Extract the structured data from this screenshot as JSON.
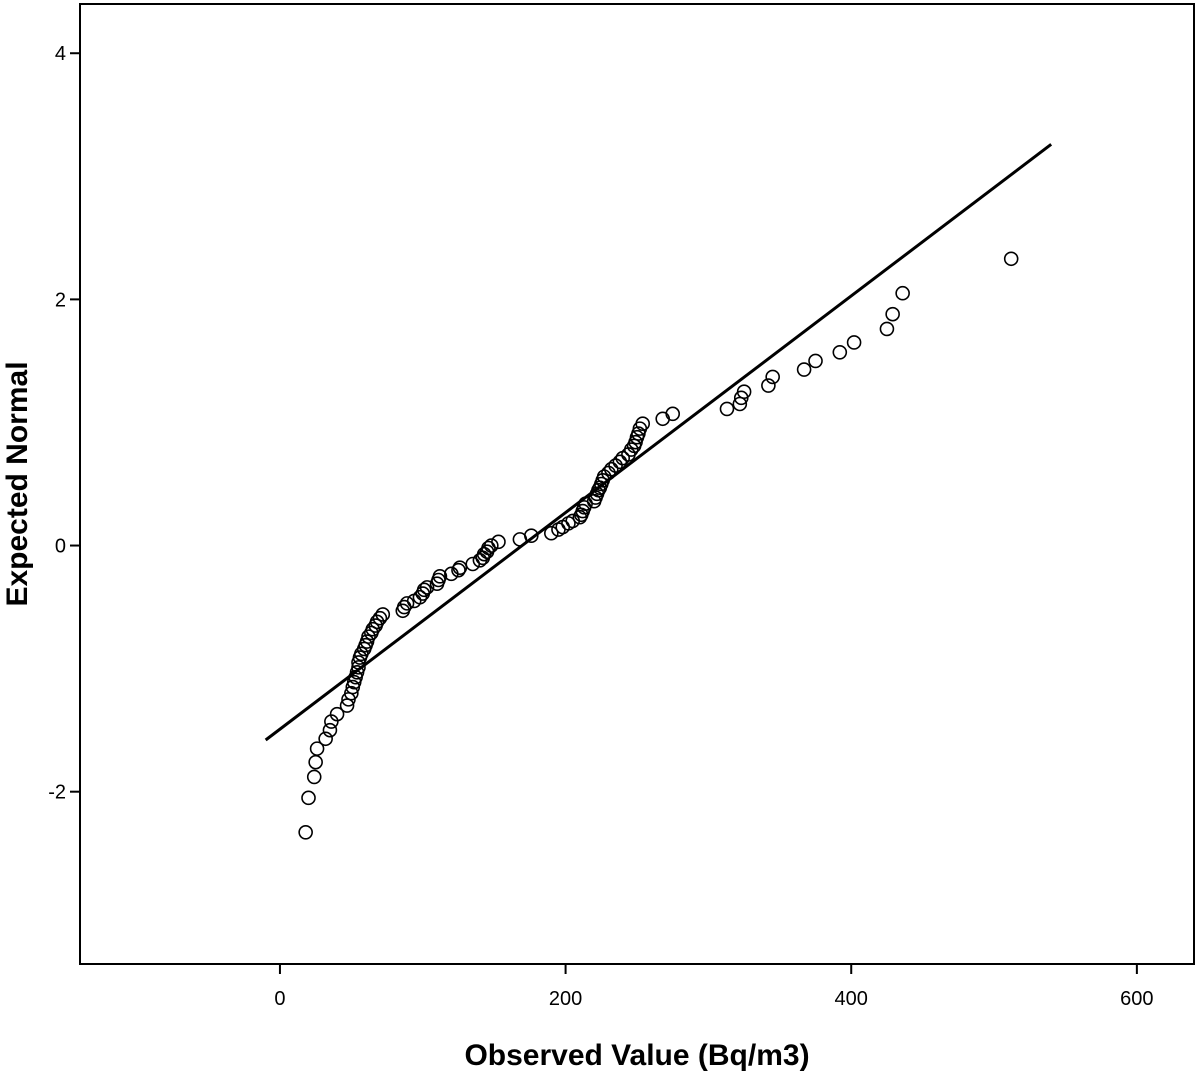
{
  "chart_data": {
    "type": "scatter",
    "title": "",
    "xlabel": "Observed Value (Bq/m3)",
    "ylabel": "Expected Normal",
    "xlim": [
      -140,
      640
    ],
    "ylim": [
      -3.4,
      4.4
    ],
    "x_ticks": [
      0,
      200,
      400,
      600
    ],
    "x_tick_labels": [
      "0",
      "200",
      "400",
      "600"
    ],
    "y_ticks": [
      -2,
      0,
      2,
      4
    ],
    "y_tick_labels": [
      "-2",
      "0",
      "2",
      "4"
    ],
    "grid": false,
    "legend": "none",
    "marker": "open-circle",
    "colors": {
      "points": "#000000",
      "line": "#000000",
      "frame": "#000000",
      "background": "#ffffff"
    },
    "reference_line": {
      "x": [
        -10,
        540
      ],
      "y": [
        -1.58,
        3.26
      ]
    },
    "points": [
      {
        "x": 18,
        "y": -2.33
      },
      {
        "x": 20,
        "y": -2.05
      },
      {
        "x": 24,
        "y": -1.88
      },
      {
        "x": 25,
        "y": -1.76
      },
      {
        "x": 26,
        "y": -1.65
      },
      {
        "x": 32,
        "y": -1.57
      },
      {
        "x": 35,
        "y": -1.5
      },
      {
        "x": 36,
        "y": -1.43
      },
      {
        "x": 40,
        "y": -1.37
      },
      {
        "x": 47,
        "y": -1.3
      },
      {
        "x": 48,
        "y": -1.25
      },
      {
        "x": 50,
        "y": -1.2
      },
      {
        "x": 51,
        "y": -1.15
      },
      {
        "x": 52,
        "y": -1.11
      },
      {
        "x": 53,
        "y": -1.07
      },
      {
        "x": 54,
        "y": -1.03
      },
      {
        "x": 55,
        "y": -0.99
      },
      {
        "x": 55,
        "y": -0.95
      },
      {
        "x": 56,
        "y": -0.91
      },
      {
        "x": 57,
        "y": -0.88
      },
      {
        "x": 59,
        "y": -0.84
      },
      {
        "x": 60,
        "y": -0.81
      },
      {
        "x": 61,
        "y": -0.78
      },
      {
        "x": 62,
        "y": -0.74
      },
      {
        "x": 64,
        "y": -0.71
      },
      {
        "x": 65,
        "y": -0.68
      },
      {
        "x": 67,
        "y": -0.65
      },
      {
        "x": 68,
        "y": -0.62
      },
      {
        "x": 70,
        "y": -0.59
      },
      {
        "x": 72,
        "y": -0.56
      },
      {
        "x": 86,
        "y": -0.53
      },
      {
        "x": 87,
        "y": -0.5
      },
      {
        "x": 89,
        "y": -0.47
      },
      {
        "x": 94,
        "y": -0.45
      },
      {
        "x": 98,
        "y": -0.42
      },
      {
        "x": 100,
        "y": -0.39
      },
      {
        "x": 101,
        "y": -0.36
      },
      {
        "x": 103,
        "y": -0.34
      },
      {
        "x": 110,
        "y": -0.31
      },
      {
        "x": 111,
        "y": -0.28
      },
      {
        "x": 112,
        "y": -0.25
      },
      {
        "x": 120,
        "y": -0.23
      },
      {
        "x": 125,
        "y": -0.2
      },
      {
        "x": 126,
        "y": -0.18
      },
      {
        "x": 135,
        "y": -0.15
      },
      {
        "x": 140,
        "y": -0.12
      },
      {
        "x": 142,
        "y": -0.1
      },
      {
        "x": 143,
        "y": -0.07
      },
      {
        "x": 145,
        "y": -0.05
      },
      {
        "x": 146,
        "y": -0.02
      },
      {
        "x": 148,
        "y": 0.0
      },
      {
        "x": 153,
        "y": 0.03
      },
      {
        "x": 168,
        "y": 0.05
      },
      {
        "x": 176,
        "y": 0.08
      },
      {
        "x": 190,
        "y": 0.1
      },
      {
        "x": 195,
        "y": 0.13
      },
      {
        "x": 198,
        "y": 0.15
      },
      {
        "x": 202,
        "y": 0.18
      },
      {
        "x": 205,
        "y": 0.2
      },
      {
        "x": 210,
        "y": 0.23
      },
      {
        "x": 211,
        "y": 0.25
      },
      {
        "x": 212,
        "y": 0.28
      },
      {
        "x": 213,
        "y": 0.31
      },
      {
        "x": 214,
        "y": 0.34
      },
      {
        "x": 220,
        "y": 0.36
      },
      {
        "x": 221,
        "y": 0.39
      },
      {
        "x": 222,
        "y": 0.42
      },
      {
        "x": 223,
        "y": 0.45
      },
      {
        "x": 224,
        "y": 0.47
      },
      {
        "x": 225,
        "y": 0.5
      },
      {
        "x": 226,
        "y": 0.53
      },
      {
        "x": 227,
        "y": 0.56
      },
      {
        "x": 230,
        "y": 0.59
      },
      {
        "x": 232,
        "y": 0.62
      },
      {
        "x": 235,
        "y": 0.65
      },
      {
        "x": 238,
        "y": 0.68
      },
      {
        "x": 240,
        "y": 0.71
      },
      {
        "x": 244,
        "y": 0.74
      },
      {
        "x": 246,
        "y": 0.78
      },
      {
        "x": 248,
        "y": 0.81
      },
      {
        "x": 249,
        "y": 0.84
      },
      {
        "x": 250,
        "y": 0.88
      },
      {
        "x": 251,
        "y": 0.91
      },
      {
        "x": 252,
        "y": 0.95
      },
      {
        "x": 254,
        "y": 0.99
      },
      {
        "x": 268,
        "y": 1.03
      },
      {
        "x": 275,
        "y": 1.07
      },
      {
        "x": 313,
        "y": 1.11
      },
      {
        "x": 322,
        "y": 1.15
      },
      {
        "x": 323,
        "y": 1.2
      },
      {
        "x": 325,
        "y": 1.25
      },
      {
        "x": 342,
        "y": 1.3
      },
      {
        "x": 345,
        "y": 1.37
      },
      {
        "x": 367,
        "y": 1.43
      },
      {
        "x": 375,
        "y": 1.5
      },
      {
        "x": 392,
        "y": 1.57
      },
      {
        "x": 402,
        "y": 1.65
      },
      {
        "x": 425,
        "y": 1.76
      },
      {
        "x": 429,
        "y": 1.88
      },
      {
        "x": 436,
        "y": 2.05
      },
      {
        "x": 512,
        "y": 2.33
      }
    ]
  }
}
